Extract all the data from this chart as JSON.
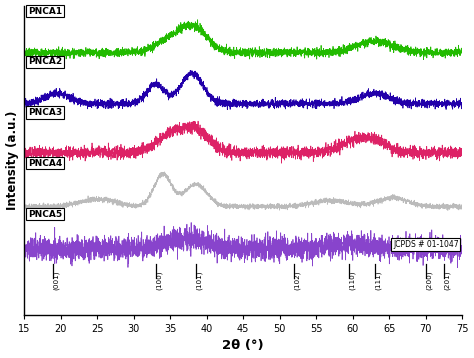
{
  "xlabel": "2θ (°)",
  "ylabel": "Intensity (a.u.)",
  "xlim": [
    15,
    75
  ],
  "xticks": [
    15,
    20,
    25,
    30,
    35,
    40,
    45,
    50,
    55,
    60,
    65,
    70,
    75
  ],
  "series_labels": [
    "PNCA1",
    "PNCA2",
    "PNCA3",
    "PNCA4",
    "PNCA5"
  ],
  "series_colors": [
    "#22bb00",
    "#2200aa",
    "#dd2266",
    "#bbbbbb",
    "#8844cc"
  ],
  "series_offsets": [
    4.0,
    3.0,
    2.0,
    1.0,
    0.0
  ],
  "miller_indices": [
    "(001)",
    "(100)",
    "(101)",
    "(102)",
    "(110)",
    "(111)",
    "(200)",
    "(201)"
  ],
  "miller_positions": [
    19.0,
    33.0,
    38.5,
    52.0,
    59.5,
    63.0,
    70.0,
    72.5
  ],
  "jcpds_label": "JCPDS # 01-1047",
  "background_color": "#ffffff"
}
